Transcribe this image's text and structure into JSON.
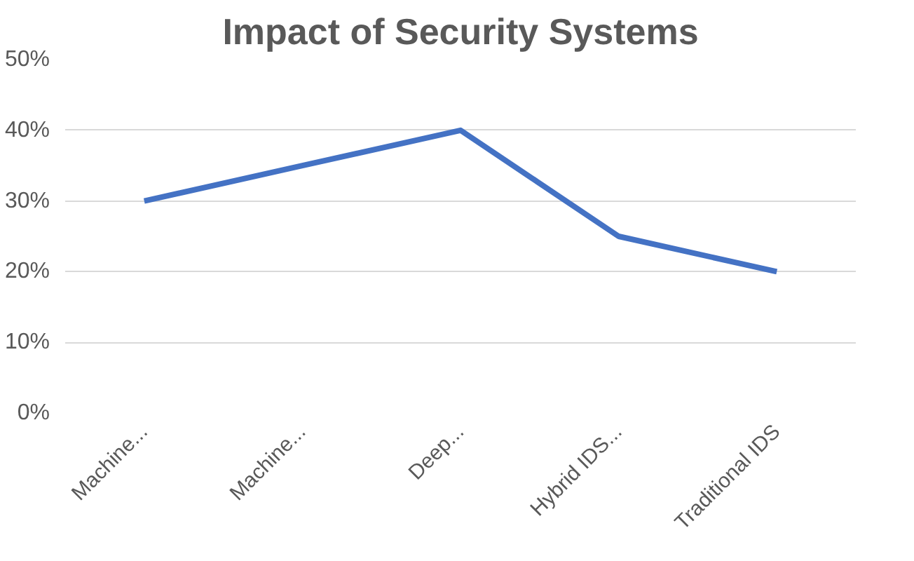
{
  "chart_data": {
    "type": "line",
    "title": "Impact of Security Systems",
    "categories": [
      "Machine...",
      "Machine...",
      "Deep...",
      "Hybrid IDS...",
      "Traditional IDS"
    ],
    "series": [
      {
        "color": "#4472c4",
        "values": [
          30,
          35,
          40,
          25,
          20
        ]
      }
    ],
    "ylim": [
      0,
      50
    ],
    "yticks": [
      {
        "value": 0,
        "label": "0%"
      },
      {
        "value": 10,
        "label": "10%"
      },
      {
        "value": 20,
        "label": "20%"
      },
      {
        "value": 30,
        "label": "30%"
      },
      {
        "value": 40,
        "label": "40%"
      },
      {
        "value": 50,
        "label": "50%"
      }
    ],
    "grid": "y",
    "line_style": "solid"
  }
}
